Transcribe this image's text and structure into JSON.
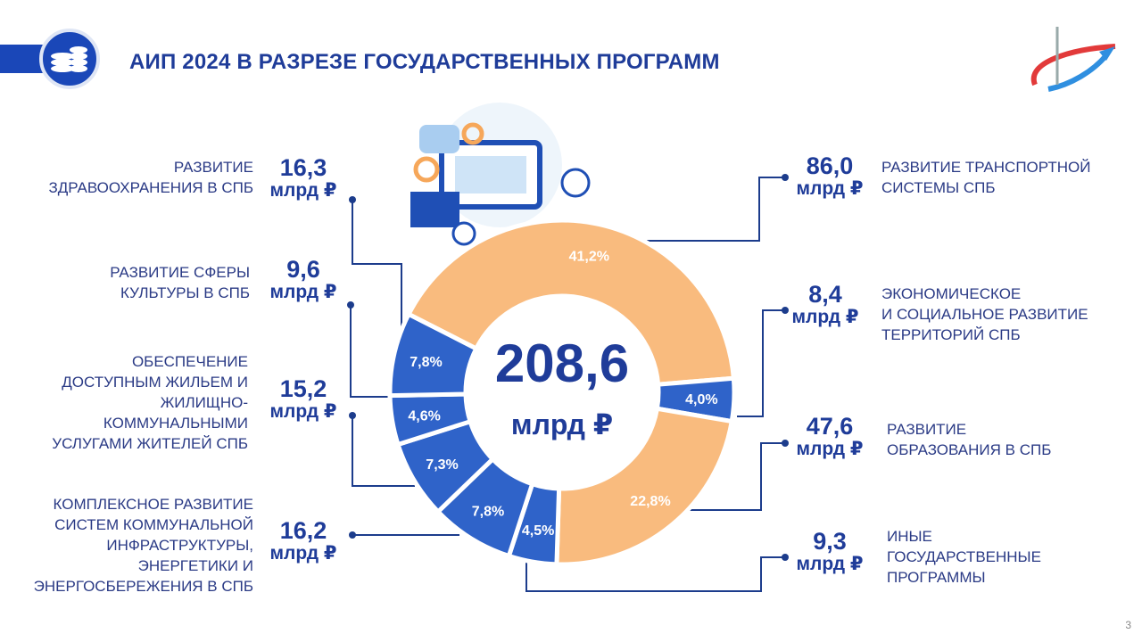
{
  "chart_data": {
    "type": "donut",
    "title": "АИП 2024 В РАЗРЕЗЕ ГОСУДАРСТВЕННЫХ ПРОГРАММ",
    "total": {
      "value": 208.6,
      "label": "208,6"
    },
    "unit": "млрд ₽",
    "categories": [
      "РАЗВИТИЕ ТРАНСПОРТНОЙ\nСИСТЕМЫ СПБ",
      "ЭКОНОМИЧЕСКОЕ\nИ СОЦИАЛЬНОЕ РАЗВИТИЕ\nТЕРРИТОРИЙ СПБ",
      "РАЗВИТИЕ\nОБРАЗОВАНИЯ В СПБ",
      "ИНЫЕ\nГОСУДАРСТВЕННЫЕ\nПРОГРАММЫ",
      "КОМПЛЕКСНОЕ РАЗВИТИЕ\nСИСТЕМ КОММУНАЛЬНОЙ\nИНФРАСТРУКТУРЫ,\nЭНЕРГЕТИКИ И\nЭНЕРГОСБЕРЕЖЕНИЯ В СПБ",
      "ОБЕСПЕЧЕНИЕ\nДОСТУПНЫМ ЖИЛЬЕМ И\nЖИЛИЩНО-\nКОММУНАЛЬНЫМИ\nУСЛУГАМИ ЖИТЕЛЕЙ СПБ",
      "РАЗВИТИЕ СФЕРЫ\nКУЛЬТУРЫ В СПБ",
      "РАЗВИТИЕ\nЗДРАВООХРАНЕНИЯ В СПБ"
    ],
    "values": [
      41.2,
      4.0,
      22.8,
      4.5,
      7.8,
      7.3,
      4.6,
      7.8
    ],
    "value_labels": [
      "41,2%",
      "4,0%",
      "22,8%",
      "4,5%",
      "7,8%",
      "7,3%",
      "4,6%",
      "7,8%"
    ],
    "colors": [
      "#f9bb7e",
      "#2f63c9",
      "#f9bb7e",
      "#2f63c9",
      "#2f63c9",
      "#2f63c9",
      "#2f63c9",
      "#2f63c9"
    ],
    "amounts": [
      86.0,
      8.4,
      47.6,
      9.3,
      16.2,
      15.2,
      9.6,
      16.3
    ],
    "amount_labels": [
      "86,0",
      "8,4",
      "47,6",
      "9,3",
      "16,2",
      "15,2",
      "9,6",
      "16,3"
    ],
    "page_number": "3"
  }
}
